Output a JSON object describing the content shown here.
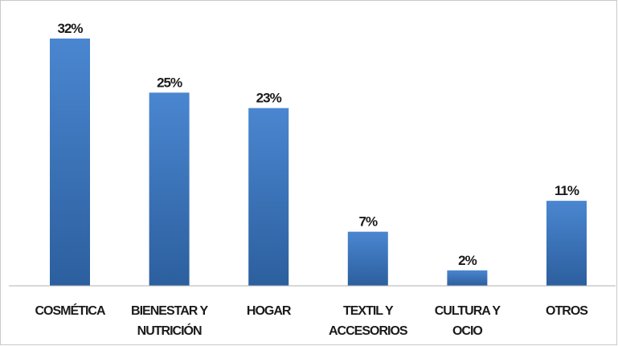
{
  "chart_data": {
    "type": "bar",
    "categories": [
      [
        "COSMÉTICA"
      ],
      [
        "BIENESTAR Y",
        "NUTRICIÓN"
      ],
      [
        "HOGAR"
      ],
      [
        "TEXTIL Y",
        "ACCESORIOS"
      ],
      [
        "CULTURA Y",
        "OCIO"
      ],
      [
        "OTROS"
      ]
    ],
    "values": [
      32,
      25,
      23,
      7,
      2,
      11
    ],
    "data_labels": [
      "32%",
      "25%",
      "23%",
      "7%",
      "2%",
      "11%"
    ],
    "title": "",
    "xlabel": "",
    "ylabel": "",
    "ylim": [
      0,
      32
    ],
    "grid": false,
    "legend": "none",
    "colors": {
      "bar_top": "#4a86d0",
      "bar_bottom": "#2c5f9e",
      "axis": "#b0b0b0"
    }
  }
}
